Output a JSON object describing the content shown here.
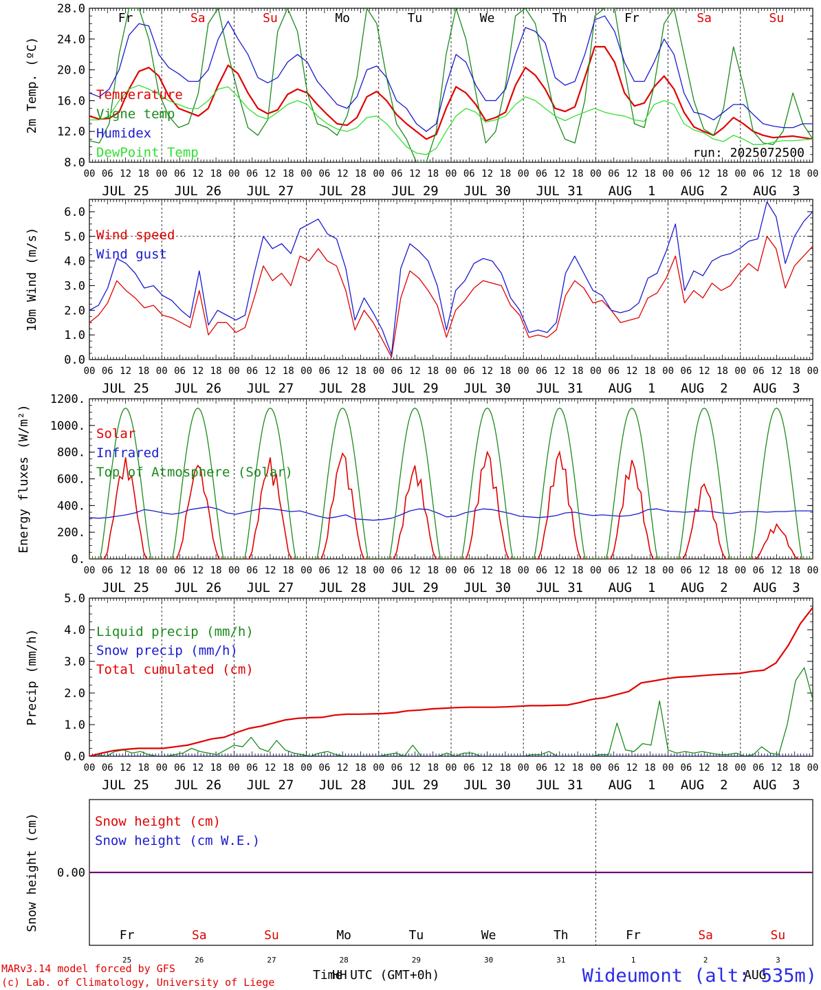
{
  "colors": {
    "red": "#e00000",
    "green": "#1a8a1a",
    "blue": "#1a1ad0",
    "lime": "#30e030",
    "dark": "#000000"
  },
  "x_axis": {
    "hour_labels": [
      "00",
      "06",
      "12",
      "18"
    ],
    "end_label": "00",
    "date_labels": [
      "JUL 25",
      "JUL 26",
      "JUL 27",
      "JUL 28",
      "JUL 29",
      "JUL 30",
      "JUL 31",
      "AUG  1",
      "AUG  2",
      "AUG  3"
    ]
  },
  "weekdays": [
    {
      "label": "Fr",
      "weekend": false
    },
    {
      "label": "Sa",
      "weekend": true
    },
    {
      "label": "Su",
      "weekend": true
    },
    {
      "label": "Mo",
      "weekend": false
    },
    {
      "label": "Tu",
      "weekend": false
    },
    {
      "label": "We",
      "weekend": false
    },
    {
      "label": "Th",
      "weekend": false
    },
    {
      "label": "Fr",
      "weekend": false
    },
    {
      "label": "Sa",
      "weekend": true
    },
    {
      "label": "Su",
      "weekend": true
    }
  ],
  "day_numbers": [
    "25",
    "26",
    "27",
    "28",
    "29",
    "30",
    "31",
    "1",
    "2",
    "3"
  ],
  "footer": {
    "model_line": "MARv3.14 model forced by GFS",
    "lab_line": "(c) Lab. of Climatology, University of Liege",
    "time_label": "Time UTC (GMT+0h)",
    "hh_label": "HH",
    "aug_label": "AUG",
    "station": "Wideumont (alt: 535m)"
  },
  "chart_data": [
    {
      "type": "line",
      "ylabel": "2m Temp. (ºC)",
      "ylim": [
        8,
        28
      ],
      "yticks": [
        8.0,
        12.0,
        16.0,
        20.0,
        24.0,
        28.0
      ],
      "ytick_labels": [
        "8.0",
        "12.0",
        "16.0",
        "20.0",
        "24.0",
        "28.0"
      ],
      "annotation": "run: 2025072500",
      "series": [
        {
          "name": "Temperature",
          "color": "red",
          "values": [
            14,
            13.6,
            13.7,
            14.5,
            17.5,
            19.8,
            20.3,
            19.2,
            16.6,
            15,
            14.5,
            14,
            15,
            18,
            20.6,
            19.5,
            17,
            15,
            14.3,
            14.8,
            16.8,
            17.5,
            17,
            15.5,
            14.2,
            13,
            12.8,
            13.8,
            16.5,
            17.2,
            16,
            14.2,
            13,
            12,
            11,
            11.6,
            15,
            17.8,
            17,
            15.5,
            13.4,
            13.8,
            14.5,
            18,
            20.3,
            19.3,
            17.5,
            15,
            14.6,
            15.2,
            19,
            23,
            23,
            21,
            17,
            15.3,
            15.7,
            17.8,
            19.2,
            17.5,
            14.5,
            12.6,
            12,
            11.5,
            12.5,
            13.8,
            13,
            12,
            11.5,
            11.2,
            11.3,
            11.4,
            11.2,
            11
          ]
        },
        {
          "name": "Vigne temp",
          "color": "green",
          "values": [
            10.8,
            10.5,
            13,
            22,
            28,
            28,
            24,
            17,
            14,
            12.5,
            13,
            17,
            26,
            28,
            22,
            17,
            12.5,
            11.5,
            13.5,
            25,
            28,
            25,
            17,
            13,
            12.5,
            11.5,
            14,
            19,
            28,
            26,
            19,
            13,
            11,
            8,
            8,
            12,
            22,
            28,
            24,
            17,
            10.5,
            12,
            18,
            27,
            28,
            26,
            20,
            14,
            11,
            10.5,
            16,
            27,
            28,
            28,
            20,
            13,
            12.5,
            18,
            26,
            28,
            22,
            16,
            12.3,
            11.5,
            15,
            23,
            18,
            12,
            10.5,
            10.3,
            12,
            17,
            13,
            11
          ]
        },
        {
          "name": "Humidex",
          "color": "blue",
          "values": [
            17,
            16.5,
            17.5,
            20,
            24.5,
            26,
            25.7,
            22,
            20.3,
            19.5,
            18.5,
            18.5,
            20,
            24,
            26.3,
            24,
            22,
            19,
            18.3,
            19,
            21,
            22,
            21,
            18.5,
            17,
            15.5,
            15,
            16.5,
            20,
            20.5,
            19,
            16,
            15,
            13,
            12,
            13,
            18,
            22,
            21,
            18,
            16,
            16,
            17.5,
            22,
            25.5,
            25,
            23.5,
            19,
            18,
            18.5,
            22,
            26.5,
            27,
            25,
            21,
            18.5,
            18.5,
            21,
            24,
            22,
            17,
            14.5,
            14.2,
            13.5,
            14.5,
            15.5,
            15.5,
            14.2,
            13,
            12.7,
            12.5,
            12.5,
            13,
            13
          ]
        },
        {
          "name": "DewPoint Temp",
          "color": "lime",
          "values": [
            13.5,
            13.5,
            14,
            16,
            17.5,
            18,
            17.5,
            16.8,
            16,
            15.5,
            15,
            15,
            16,
            17.5,
            17.8,
            16.5,
            15,
            14,
            13.6,
            14.5,
            15.5,
            16,
            15.5,
            14,
            13,
            12.3,
            12,
            12.5,
            13.8,
            14,
            13,
            11.5,
            10,
            9.2,
            9,
            9.8,
            12,
            14,
            15,
            14.5,
            13.2,
            13.5,
            14,
            15.5,
            16.5,
            16,
            15,
            14,
            13.4,
            14,
            14.5,
            15,
            14.5,
            14.2,
            14,
            13.5,
            13.3,
            15.5,
            16,
            15.5,
            13,
            12.2,
            11.8,
            11,
            10.7,
            11.5,
            11,
            10.3,
            10.3,
            10.6,
            10.8,
            10.8,
            10.9,
            11
          ]
        }
      ]
    },
    {
      "type": "line",
      "ylabel": "10m Wind (m/s)",
      "ylim": [
        0,
        6.5
      ],
      "yticks": [
        0.0,
        1.0,
        2.0,
        3.0,
        4.0,
        5.0,
        6.0
      ],
      "ytick_labels": [
        "0.0",
        "1.0",
        "2.0",
        "3.0",
        "4.0",
        "5.0",
        "6.0"
      ],
      "reference_line": 5.0,
      "series": [
        {
          "name": "Wind speed",
          "color": "red",
          "values": [
            1.5,
            1.8,
            2.3,
            3.2,
            2.8,
            2.5,
            2.1,
            2.2,
            1.8,
            1.7,
            1.5,
            1.3,
            2.8,
            1.0,
            1.5,
            1.5,
            1.1,
            1.3,
            2.5,
            3.8,
            3.2,
            3.5,
            3.0,
            4.2,
            4.0,
            4.5,
            4.0,
            3.8,
            2.8,
            1.2,
            2.0,
            1.5,
            0.8,
            0.1,
            2.5,
            3.6,
            3.3,
            2.8,
            2.2,
            0.9,
            2.0,
            2.4,
            2.9,
            3.2,
            3.1,
            3.0,
            2.2,
            1.8,
            0.9,
            1.0,
            0.9,
            1.2,
            2.6,
            3.2,
            2.9,
            2.3,
            2.4,
            2.0,
            1.5,
            1.6,
            1.7,
            2.5,
            2.7,
            3.3,
            4.2,
            2.3,
            2.8,
            2.5,
            3.1,
            2.8,
            3.0,
            3.5,
            3.9,
            3.6,
            5.0,
            4.5,
            2.9,
            3.8,
            4.2,
            4.6
          ]
        },
        {
          "name": "Wind gust",
          "color": "blue",
          "values": [
            2.0,
            2.2,
            2.9,
            4.1,
            3.9,
            3.5,
            2.9,
            3.0,
            2.6,
            2.4,
            2.0,
            1.7,
            3.6,
            1.4,
            2.0,
            1.8,
            1.6,
            1.8,
            3.5,
            5.0,
            4.5,
            4.7,
            4.3,
            5.3,
            5.5,
            5.7,
            5.1,
            4.9,
            3.7,
            1.6,
            2.5,
            1.9,
            1.2,
            0.2,
            3.7,
            4.7,
            4.4,
            4.0,
            3.0,
            1.2,
            2.8,
            3.2,
            3.9,
            4.1,
            4.0,
            3.5,
            2.5,
            2.0,
            1.1,
            1.2,
            1.1,
            1.5,
            3.5,
            4.2,
            3.5,
            2.8,
            2.6,
            2.0,
            1.9,
            2.0,
            2.3,
            3.3,
            3.5,
            4.4,
            5.5,
            2.8,
            3.6,
            3.4,
            4.0,
            4.2,
            4.3,
            4.5,
            4.8,
            4.9,
            6.4,
            5.8,
            3.9,
            5.0,
            5.6,
            6.0
          ]
        }
      ]
    },
    {
      "type": "line",
      "ylabel": "Energy fluxes (W/m²)",
      "ylim": [
        0,
        1200
      ],
      "yticks": [
        0,
        200,
        400,
        600,
        800,
        1000,
        1200
      ],
      "ytick_labels": [
        "0.",
        "200.",
        "400.",
        "600.",
        "800.",
        "1000.",
        "1200."
      ],
      "series": [
        {
          "name": "Solar",
          "color": "red",
          "day_peaks": [
            760,
            700,
            760,
            790,
            700,
            800,
            800,
            740,
            560,
            260
          ]
        },
        {
          "name": "Infrared",
          "color": "blue",
          "values": [
            310,
            305,
            310,
            320,
            330,
            345,
            370,
            360,
            345,
            335,
            345,
            370,
            380,
            390,
            375,
            345,
            335,
            350,
            365,
            380,
            375,
            365,
            355,
            360,
            340,
            320,
            305,
            315,
            330,
            300,
            295,
            290,
            295,
            305,
            330,
            360,
            375,
            370,
            345,
            315,
            320,
            345,
            360,
            375,
            370,
            355,
            340,
            320,
            315,
            310,
            315,
            325,
            345,
            350,
            335,
            325,
            330,
            325,
            320,
            325,
            340,
            370,
            375,
            360,
            355,
            350,
            355,
            360,
            355,
            345,
            340,
            350,
            355,
            355,
            350,
            355,
            355,
            360,
            360,
            360
          ]
        },
        {
          "name": "Top of Atmosphere (Solar)",
          "color": "green",
          "peak": 1130
        }
      ]
    },
    {
      "type": "line",
      "ylabel": "Precip (mm/h)",
      "ylim": [
        0,
        5
      ],
      "yticks": [
        0.0,
        1.0,
        2.0,
        3.0,
        4.0,
        5.0
      ],
      "ytick_labels": [
        "0.0",
        "1.0",
        "2.0",
        "3.0",
        "4.0",
        "5.0"
      ],
      "series": [
        {
          "name": "Liquid precip (mm/h)",
          "color": "green",
          "values": [
            0,
            0.05,
            0,
            0.15,
            0.2,
            0.1,
            0.15,
            0.05,
            0,
            0,
            0.05,
            0.1,
            0.25,
            0.15,
            0.1,
            0.05,
            0.2,
            0.35,
            0.3,
            0.6,
            0.25,
            0.15,
            0.5,
            0.2,
            0.1,
            0.05,
            0,
            0.1,
            0.15,
            0.05,
            0,
            0,
            0,
            0,
            0,
            0.05,
            0.1,
            0,
            0.35,
            0,
            0,
            0,
            0.1,
            0,
            0.1,
            0.1,
            0,
            0,
            0,
            0,
            0,
            0,
            0.05,
            0.05,
            0.15,
            0,
            0,
            0,
            0,
            0,
            0.05,
            0.05,
            1.05,
            0.2,
            0.15,
            0.4,
            0.35,
            1.75,
            0.2,
            0.1,
            0.15,
            0.1,
            0.15,
            0.1,
            0.05,
            0.05,
            0.1,
            0,
            0.05,
            0.3,
            0.1,
            0.05,
            1.0,
            2.4,
            2.8,
            1.8
          ]
        },
        {
          "name": "Snow precip (mm/h)",
          "color": "blue",
          "values": [
            0,
            0,
            0
          ]
        },
        {
          "name": "Total cumulated (cm)",
          "color": "red",
          "values": [
            0.0,
            0.1,
            0.18,
            0.22,
            0.25,
            0.25,
            0.25,
            0.3,
            0.35,
            0.45,
            0.55,
            0.6,
            0.75,
            0.88,
            0.95,
            1.05,
            1.15,
            1.2,
            1.22,
            1.23,
            1.3,
            1.33,
            1.33,
            1.34,
            1.35,
            1.38,
            1.44,
            1.46,
            1.5,
            1.52,
            1.54,
            1.55,
            1.55,
            1.55,
            1.56,
            1.58,
            1.6,
            1.6,
            1.61,
            1.62,
            1.7,
            1.8,
            1.85,
            1.95,
            2.05,
            2.32,
            2.38,
            2.45,
            2.5,
            2.52,
            2.55,
            2.58,
            2.6,
            2.62,
            2.68,
            2.72,
            2.95,
            3.5,
            4.2,
            4.7
          ]
        }
      ]
    },
    {
      "type": "line",
      "ylabel": "Snow height (cm)",
      "ylim": [
        -1,
        1
      ],
      "yticks": [
        0.0
      ],
      "ytick_labels": [
        "0.00"
      ],
      "series": [
        {
          "name": "Snow height (cm)",
          "color": "red",
          "values": [
            0,
            0
          ]
        },
        {
          "name": "Snow height (cm W.E.)",
          "color": "blue",
          "values": [
            0,
            0
          ]
        }
      ]
    }
  ]
}
